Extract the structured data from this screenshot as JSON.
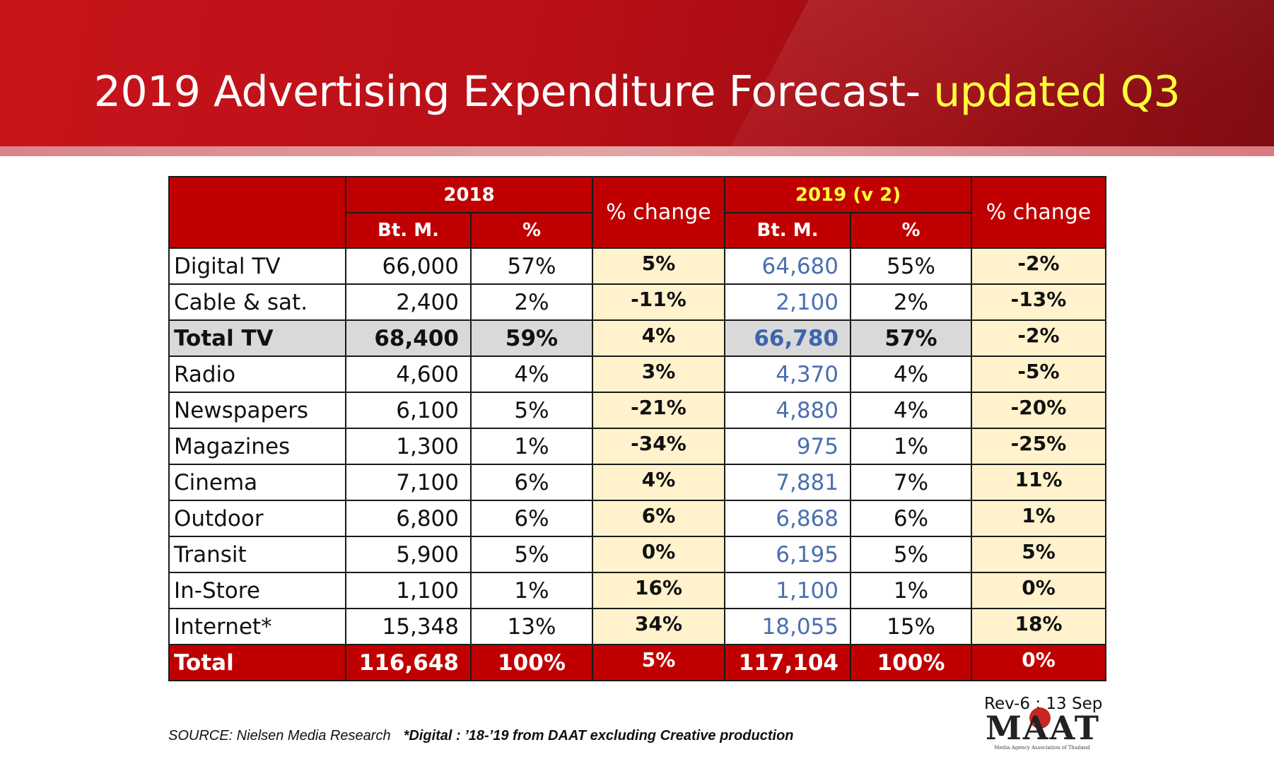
{
  "header": {
    "title_main": "2019 Advertising Expenditure Forecast- ",
    "title_highlight": "updated Q3"
  },
  "table": {
    "headers": {
      "year_2018": "2018",
      "year_2019": "2019 (v 2)",
      "pct_change": "% change",
      "bt_m": "Bt. M.",
      "pct": "%"
    },
    "rows": [
      {
        "label": "Digital TV",
        "bt2018": "66,000",
        "pct2018": "57%",
        "chg2018": "5%",
        "bt2019": "64,680",
        "pct2019": "55%",
        "chg2019": "-2%"
      },
      {
        "label": "Cable & sat.",
        "bt2018": "2,400",
        "pct2018": "2%",
        "chg2018": "-11%",
        "bt2019": "2,100",
        "pct2019": "2%",
        "chg2019": "-13%"
      },
      {
        "label": "Total TV",
        "bt2018": "68,400",
        "pct2018": "59%",
        "chg2018": "4%",
        "bt2019": "66,780",
        "pct2019": "57%",
        "chg2019": "-2%"
      },
      {
        "label": "Radio",
        "bt2018": "4,600",
        "pct2018": "4%",
        "chg2018": "3%",
        "bt2019": "4,370",
        "pct2019": "4%",
        "chg2019": "-5%"
      },
      {
        "label": "Newspapers",
        "bt2018": "6,100",
        "pct2018": "5%",
        "chg2018": "-21%",
        "bt2019": "4,880",
        "pct2019": "4%",
        "chg2019": "-20%"
      },
      {
        "label": "Magazines",
        "bt2018": "1,300",
        "pct2018": "1%",
        "chg2018": "-34%",
        "bt2019": "975",
        "pct2019": "1%",
        "chg2019": "-25%"
      },
      {
        "label": "Cinema",
        "bt2018": "7,100",
        "pct2018": "6%",
        "chg2018": "4%",
        "bt2019": "7,881",
        "pct2019": "7%",
        "chg2019": "11%"
      },
      {
        "label": "Outdoor",
        "bt2018": "6,800",
        "pct2018": "6%",
        "chg2018": "6%",
        "bt2019": "6,868",
        "pct2019": "6%",
        "chg2019": "1%"
      },
      {
        "label": "Transit",
        "bt2018": "5,900",
        "pct2018": "5%",
        "chg2018": "0%",
        "bt2019": "6,195",
        "pct2019": "5%",
        "chg2019": "5%"
      },
      {
        "label": "In-Store",
        "bt2018": "1,100",
        "pct2018": "1%",
        "chg2018": "16%",
        "bt2019": "1,100",
        "pct2019": "1%",
        "chg2019": "0%"
      },
      {
        "label": "Internet*",
        "bt2018": "15,348",
        "pct2018": "13%",
        "chg2018": "34%",
        "bt2019": "18,055",
        "pct2019": "15%",
        "chg2019": "18%"
      }
    ],
    "total": {
      "label": "Total",
      "bt2018": "116,648",
      "pct2018": "100%",
      "chg2018": "5%",
      "bt2019": "117,104",
      "pct2019": "100%",
      "chg2019": "0%"
    }
  },
  "footer": {
    "source": "SOURCE:  Nielsen Media Research",
    "note": "*Digital : ’18-’19  from DAAT excluding Creative production",
    "revision": "Rev-6 : 13 Sep",
    "logo_text": "MAAT",
    "logo_tagline": "Media Agency Association of Thailand"
  },
  "colors": {
    "banner_red": "#c00000",
    "title_highlight": "#ffff3c",
    "change_column_bg": "#fff2cc",
    "total_tv_bg": "#d9d9d9",
    "value_2019_blue": "#4a6fb0"
  }
}
